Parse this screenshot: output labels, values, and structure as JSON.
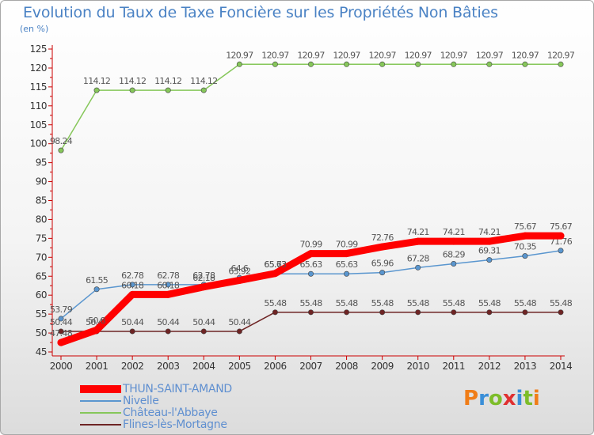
{
  "title": "Evolution du Taux de Taxe Foncière sur les Propriétés Non Bâties",
  "subtitle": "(en %)",
  "brand": {
    "letters": [
      "P",
      "r",
      "o",
      "x",
      "i",
      "t",
      "i"
    ],
    "colors": [
      "#f07d18",
      "#3a8fd8",
      "#7dbd2a",
      "#e03030",
      "#3a8fd8",
      "#7dbd2a",
      "#f07d18"
    ]
  },
  "chart_data": {
    "type": "line",
    "title": "Evolution du Taux de Taxe Foncière sur les Propriétés Non Bâties",
    "ylabel": "(en %)",
    "xlabel": "",
    "ylim": [
      45,
      125
    ],
    "yticks": [
      45,
      50,
      55,
      60,
      65,
      70,
      75,
      80,
      85,
      90,
      95,
      100,
      105,
      110,
      115,
      120,
      125
    ],
    "x": [
      "2000",
      "2001",
      "2002",
      "2003",
      "2004",
      "2005",
      "2006",
      "2007",
      "2008",
      "2009",
      "2010",
      "2011",
      "2012",
      "2013",
      "2014"
    ],
    "series": [
      {
        "name": "THUN-SAINT-AMAND",
        "color": "#ff0000",
        "values": [
          47.48,
          50.8,
          60.18,
          60.18,
          62.18,
          63.92,
          65.73,
          70.99,
          70.99,
          72.76,
          74.21,
          74.21,
          74.21,
          75.67,
          75.67
        ],
        "labels": [
          "47.48",
          "50.8",
          "60.18",
          "60.18",
          "62.18",
          "63.92",
          "65.73",
          "70.99",
          "70.99",
          "72.76",
          "74.21",
          "74.21",
          "74.21",
          "75.67",
          "75.67"
        ]
      },
      {
        "name": "Nivelle",
        "color": "#5a96cf",
        "values": [
          53.79,
          61.55,
          62.78,
          62.78,
          62.78,
          64.6,
          65.63,
          65.63,
          65.63,
          65.96,
          67.28,
          68.29,
          69.31,
          70.35,
          71.76
        ],
        "labels": [
          "53.79",
          "61.55",
          "62.78",
          "62.78",
          "62.78",
          "64.6",
          "65.63",
          "65.63",
          "65.63",
          "65.96",
          "67.28",
          "68.29",
          "69.31",
          "70.35",
          "71.76"
        ]
      },
      {
        "name": "Château-l'Abbaye",
        "color": "#86c75a",
        "values": [
          98.24,
          114.12,
          114.12,
          114.12,
          114.12,
          120.97,
          120.97,
          120.97,
          120.97,
          120.97,
          120.97,
          120.97,
          120.97,
          120.97,
          120.97
        ],
        "labels": [
          "98.24",
          "114.12",
          "114.12",
          "114.12",
          "114.12",
          "120.97",
          "120.97",
          "120.97",
          "120.97",
          "120.97",
          "120.97",
          "120.97",
          "120.97",
          "120.97",
          "120.97"
        ]
      },
      {
        "name": "Flines-lès-Mortagne",
        "color": "#6e2424",
        "values": [
          50.44,
          50.44,
          50.44,
          50.44,
          50.44,
          50.44,
          55.48,
          55.48,
          55.48,
          55.48,
          55.48,
          55.48,
          55.48,
          55.48,
          55.48
        ],
        "labels": [
          "50.44",
          "50.44",
          "50.44",
          "50.44",
          "50.44",
          "50.44",
          "55.48",
          "55.48",
          "55.48",
          "55.48",
          "55.48",
          "55.48",
          "55.48",
          "55.48",
          "55.48"
        ]
      }
    ],
    "legend": [
      "THUN-SAINT-AMAND",
      "Nivelle",
      "Château-l'Abbaye",
      "Flines-lès-Mortagne"
    ],
    "grid": false,
    "legend_position": "bottom-left"
  }
}
